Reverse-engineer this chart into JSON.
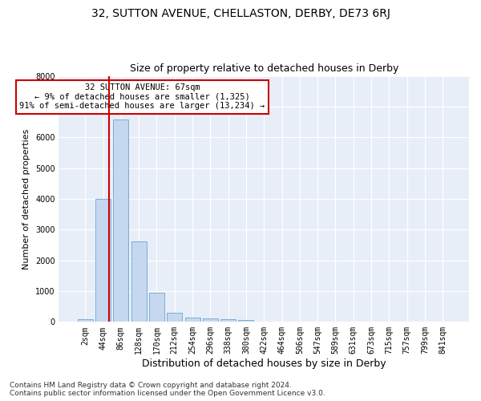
{
  "title": "32, SUTTON AVENUE, CHELLASTON, DERBY, DE73 6RJ",
  "subtitle": "Size of property relative to detached houses in Derby",
  "xlabel": "Distribution of detached houses by size in Derby",
  "ylabel": "Number of detached properties",
  "bar_labels": [
    "2sqm",
    "44sqm",
    "86sqm",
    "128sqm",
    "170sqm",
    "212sqm",
    "254sqm",
    "296sqm",
    "338sqm",
    "380sqm",
    "422sqm",
    "464sqm",
    "506sqm",
    "547sqm",
    "589sqm",
    "631sqm",
    "673sqm",
    "715sqm",
    "757sqm",
    "799sqm",
    "841sqm"
  ],
  "bar_values": [
    80,
    4000,
    6580,
    2620,
    950,
    300,
    130,
    110,
    85,
    60,
    0,
    0,
    0,
    0,
    0,
    0,
    0,
    0,
    0,
    0,
    0
  ],
  "bar_color": "#c5d8f0",
  "bar_edge_color": "#7aadd4",
  "vline_x_index": 1.35,
  "vline_color": "#cc0000",
  "annotation_text": "32 SUTTON AVENUE: 67sqm\n← 9% of detached houses are smaller (1,325)\n91% of semi-detached houses are larger (13,234) →",
  "annotation_box_facecolor": "#ffffff",
  "annotation_box_edgecolor": "#cc0000",
  "ylim": [
    0,
    8000
  ],
  "yticks": [
    0,
    1000,
    2000,
    3000,
    4000,
    5000,
    6000,
    7000,
    8000
  ],
  "footer_text": "Contains HM Land Registry data © Crown copyright and database right 2024.\nContains public sector information licensed under the Open Government Licence v3.0.",
  "fig_facecolor": "#ffffff",
  "plot_facecolor": "#e8eef8",
  "grid_color": "#ffffff",
  "title_fontsize": 10,
  "subtitle_fontsize": 9,
  "xlabel_fontsize": 9,
  "ylabel_fontsize": 8,
  "tick_fontsize": 7,
  "annotation_fontsize": 7.5,
  "footer_fontsize": 6.5
}
